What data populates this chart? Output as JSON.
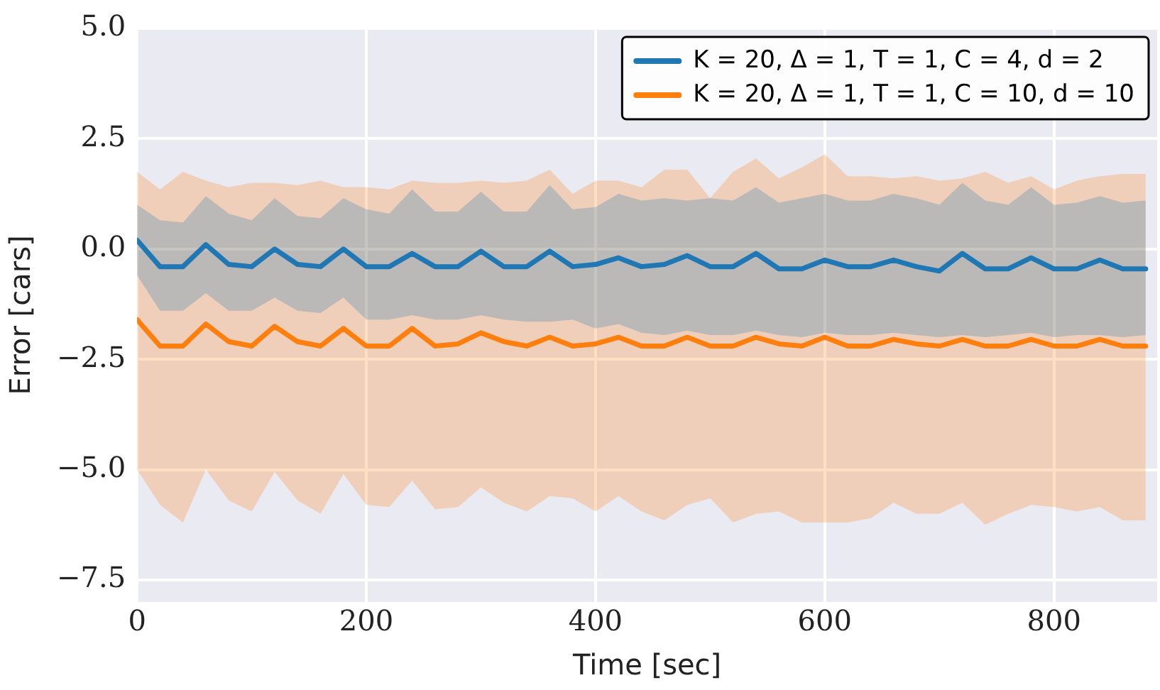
{
  "chart_data": {
    "type": "line",
    "xlabel": "Time [sec]",
    "ylabel": "Error [cars]",
    "x": [
      0,
      20,
      40,
      60,
      80,
      100,
      120,
      140,
      160,
      180,
      200,
      220,
      240,
      260,
      280,
      300,
      320,
      340,
      360,
      380,
      400,
      420,
      440,
      460,
      480,
      500,
      520,
      540,
      560,
      580,
      600,
      620,
      640,
      660,
      680,
      700,
      720,
      740,
      760,
      780,
      800,
      820,
      840,
      860,
      880
    ],
    "series": [
      {
        "name": "K = 20, Δ = 1, T = 1, C = 4, d = 2",
        "color": "#1f77b4",
        "values": [
          0.2,
          -0.4,
          -0.4,
          0.1,
          -0.35,
          -0.4,
          0.0,
          -0.35,
          -0.4,
          0.0,
          -0.4,
          -0.4,
          -0.1,
          -0.4,
          -0.4,
          -0.05,
          -0.4,
          -0.4,
          -0.05,
          -0.4,
          -0.35,
          -0.2,
          -0.4,
          -0.35,
          -0.15,
          -0.4,
          -0.4,
          -0.1,
          -0.45,
          -0.45,
          -0.25,
          -0.4,
          -0.4,
          -0.25,
          -0.4,
          -0.5,
          -0.1,
          -0.45,
          -0.45,
          -0.2,
          -0.45,
          -0.45,
          -0.25,
          -0.45,
          -0.45
        ],
        "lower": [
          -0.6,
          -1.4,
          -1.4,
          -1.0,
          -1.4,
          -1.4,
          -1.1,
          -1.4,
          -1.45,
          -1.1,
          -1.6,
          -1.6,
          -1.5,
          -1.6,
          -1.6,
          -1.5,
          -1.6,
          -1.65,
          -1.65,
          -1.6,
          -1.8,
          -1.7,
          -1.9,
          -1.95,
          -1.85,
          -1.95,
          -1.95,
          -1.85,
          -1.95,
          -2.0,
          -1.9,
          -1.95,
          -1.95,
          -1.9,
          -1.95,
          -2.0,
          -1.95,
          -2.0,
          -1.95,
          -1.9,
          -2.0,
          -1.95,
          -1.95,
          -2.0,
          -1.95
        ],
        "upper": [
          1.0,
          0.65,
          0.6,
          1.2,
          0.8,
          0.65,
          1.15,
          0.75,
          0.7,
          1.15,
          0.9,
          0.8,
          1.35,
          0.85,
          0.85,
          1.3,
          0.85,
          0.85,
          1.45,
          0.9,
          0.95,
          1.25,
          1.1,
          1.15,
          1.1,
          1.15,
          1.1,
          1.4,
          1.05,
          1.15,
          1.25,
          1.1,
          1.1,
          1.25,
          1.15,
          1.0,
          1.5,
          1.1,
          1.0,
          1.4,
          1.0,
          1.05,
          1.2,
          1.05,
          1.1
        ]
      },
      {
        "name": "K = 20, Δ = 1, T = 1, C = 10, d = 10",
        "color": "#ff7f0e",
        "values": [
          -1.6,
          -2.2,
          -2.2,
          -1.7,
          -2.1,
          -2.2,
          -1.75,
          -2.1,
          -2.2,
          -1.8,
          -2.2,
          -2.2,
          -1.8,
          -2.2,
          -2.15,
          -1.9,
          -2.1,
          -2.2,
          -2.0,
          -2.2,
          -2.15,
          -2.0,
          -2.2,
          -2.2,
          -2.0,
          -2.2,
          -2.2,
          -2.0,
          -2.15,
          -2.2,
          -2.0,
          -2.2,
          -2.2,
          -2.05,
          -2.15,
          -2.2,
          -2.05,
          -2.2,
          -2.2,
          -2.05,
          -2.2,
          -2.2,
          -2.05,
          -2.2,
          -2.2
        ],
        "lower": [
          -5.0,
          -5.8,
          -6.2,
          -5.0,
          -5.7,
          -5.95,
          -5.05,
          -5.7,
          -6.0,
          -5.1,
          -5.8,
          -5.85,
          -5.25,
          -5.9,
          -5.85,
          -5.4,
          -5.75,
          -5.95,
          -5.6,
          -5.65,
          -5.95,
          -5.6,
          -5.95,
          -6.15,
          -5.8,
          -5.65,
          -6.2,
          -6.0,
          -5.95,
          -6.2,
          -6.2,
          -6.2,
          -6.1,
          -5.75,
          -6.0,
          -6.0,
          -5.75,
          -6.25,
          -6.0,
          -5.8,
          -5.85,
          -5.95,
          -5.85,
          -6.15,
          -6.15
        ],
        "upper": [
          1.75,
          1.35,
          1.75,
          1.55,
          1.4,
          1.5,
          1.5,
          1.45,
          1.55,
          1.4,
          1.4,
          1.35,
          1.55,
          1.5,
          1.5,
          1.55,
          1.5,
          1.55,
          1.8,
          1.25,
          1.55,
          1.55,
          1.4,
          1.8,
          1.8,
          1.15,
          1.75,
          2.05,
          1.6,
          1.85,
          2.15,
          1.65,
          1.65,
          1.6,
          1.65,
          1.55,
          1.6,
          1.75,
          1.5,
          1.65,
          1.35,
          1.55,
          1.65,
          1.7,
          1.7
        ]
      }
    ],
    "xlim": [
      0,
      890
    ],
    "xticks": [
      0,
      200,
      400,
      600,
      800
    ],
    "ylim": [
      -8,
      5
    ],
    "yticks": [
      {
        "value": -7.5,
        "label": "−7.5"
      },
      {
        "value": -5,
        "label": "−5.0"
      },
      {
        "value": -2.5,
        "label": "−2.5"
      },
      {
        "value": 0,
        "label": "0.0"
      },
      {
        "value": 2.5,
        "label": "2.5"
      },
      {
        "value": 5,
        "label": "5.0"
      }
    ],
    "grid": true,
    "legend": "top right",
    "marker": "none",
    "line_style": "solid"
  }
}
